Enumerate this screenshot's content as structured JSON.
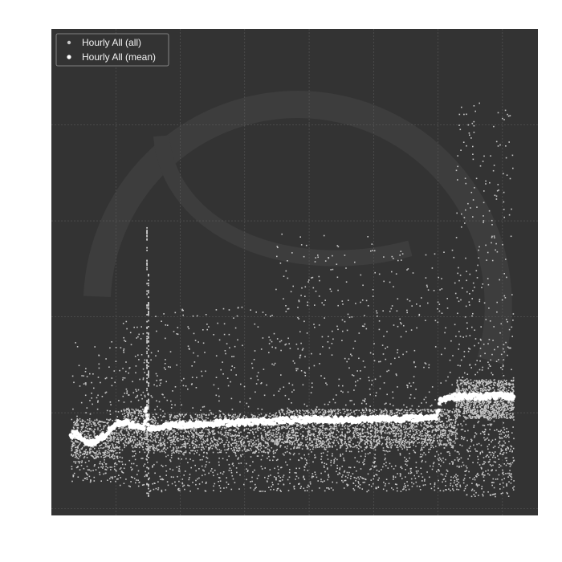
{
  "chart_data": {
    "type": "scatter",
    "title": "",
    "xlabel": "",
    "ylabel": "",
    "xlim": [
      0,
      100
    ],
    "ylim": [
      0,
      100
    ],
    "grid": true,
    "legend_placement": "top-left",
    "background_color": "#333333",
    "grid_color": "#5a5a5a",
    "series": [
      {
        "name": "Hourly All (all)",
        "color": "#c8c8c8",
        "segments": [
          {
            "x_start": 4,
            "x_end": 14,
            "center": 16,
            "spread_low": 7,
            "spread_high": 36,
            "points": 700
          },
          {
            "x_start": 14,
            "x_end": 19,
            "center": 18,
            "spread_low": 6,
            "spread_high": 40,
            "points": 400
          },
          {
            "x_start": 19,
            "x_end": 46,
            "center": 17,
            "spread_low": 5,
            "spread_high": 43,
            "points": 1600
          },
          {
            "x_start": 46,
            "x_end": 66,
            "center": 18,
            "spread_low": 5,
            "spread_high": 58,
            "points": 1500
          },
          {
            "x_start": 66,
            "x_end": 83,
            "center": 18,
            "spread_low": 5,
            "spread_high": 55,
            "points": 1300
          },
          {
            "x_start": 83,
            "x_end": 95,
            "center": 24,
            "spread_low": 4,
            "spread_high": 85,
            "points": 1600
          }
        ],
        "spikes": [
          {
            "x": 19.5,
            "y_min": 4,
            "y_max": 60
          },
          {
            "x": 19.8,
            "y_min": 4,
            "y_max": 51
          }
        ]
      },
      {
        "name": "Hourly All (mean)",
        "color": "#ffffff",
        "x": [
          4,
          5,
          6,
          7,
          8,
          9,
          10,
          11,
          12,
          13,
          14,
          15,
          16,
          17,
          18,
          19,
          19.5,
          20,
          21,
          22,
          25,
          30,
          35,
          40,
          45,
          50,
          55,
          60,
          65,
          70,
          75,
          78,
          79,
          79.5,
          80,
          82,
          85,
          88,
          90,
          93,
          95
        ],
        "y": [
          16.5,
          16.8,
          16,
          15,
          14.8,
          15.2,
          16,
          16.3,
          17.5,
          18.5,
          19,
          19.2,
          18.8,
          18.5,
          18,
          17.8,
          22,
          17.8,
          18,
          18.2,
          18.5,
          18.8,
          19,
          19.2,
          19.4,
          19.6,
          19.8,
          19.6,
          19.8,
          19.9,
          20,
          20.2,
          20,
          21.5,
          24,
          24.3,
          24.5,
          24.4,
          24.6,
          24.5,
          24.4
        ]
      }
    ]
  }
}
